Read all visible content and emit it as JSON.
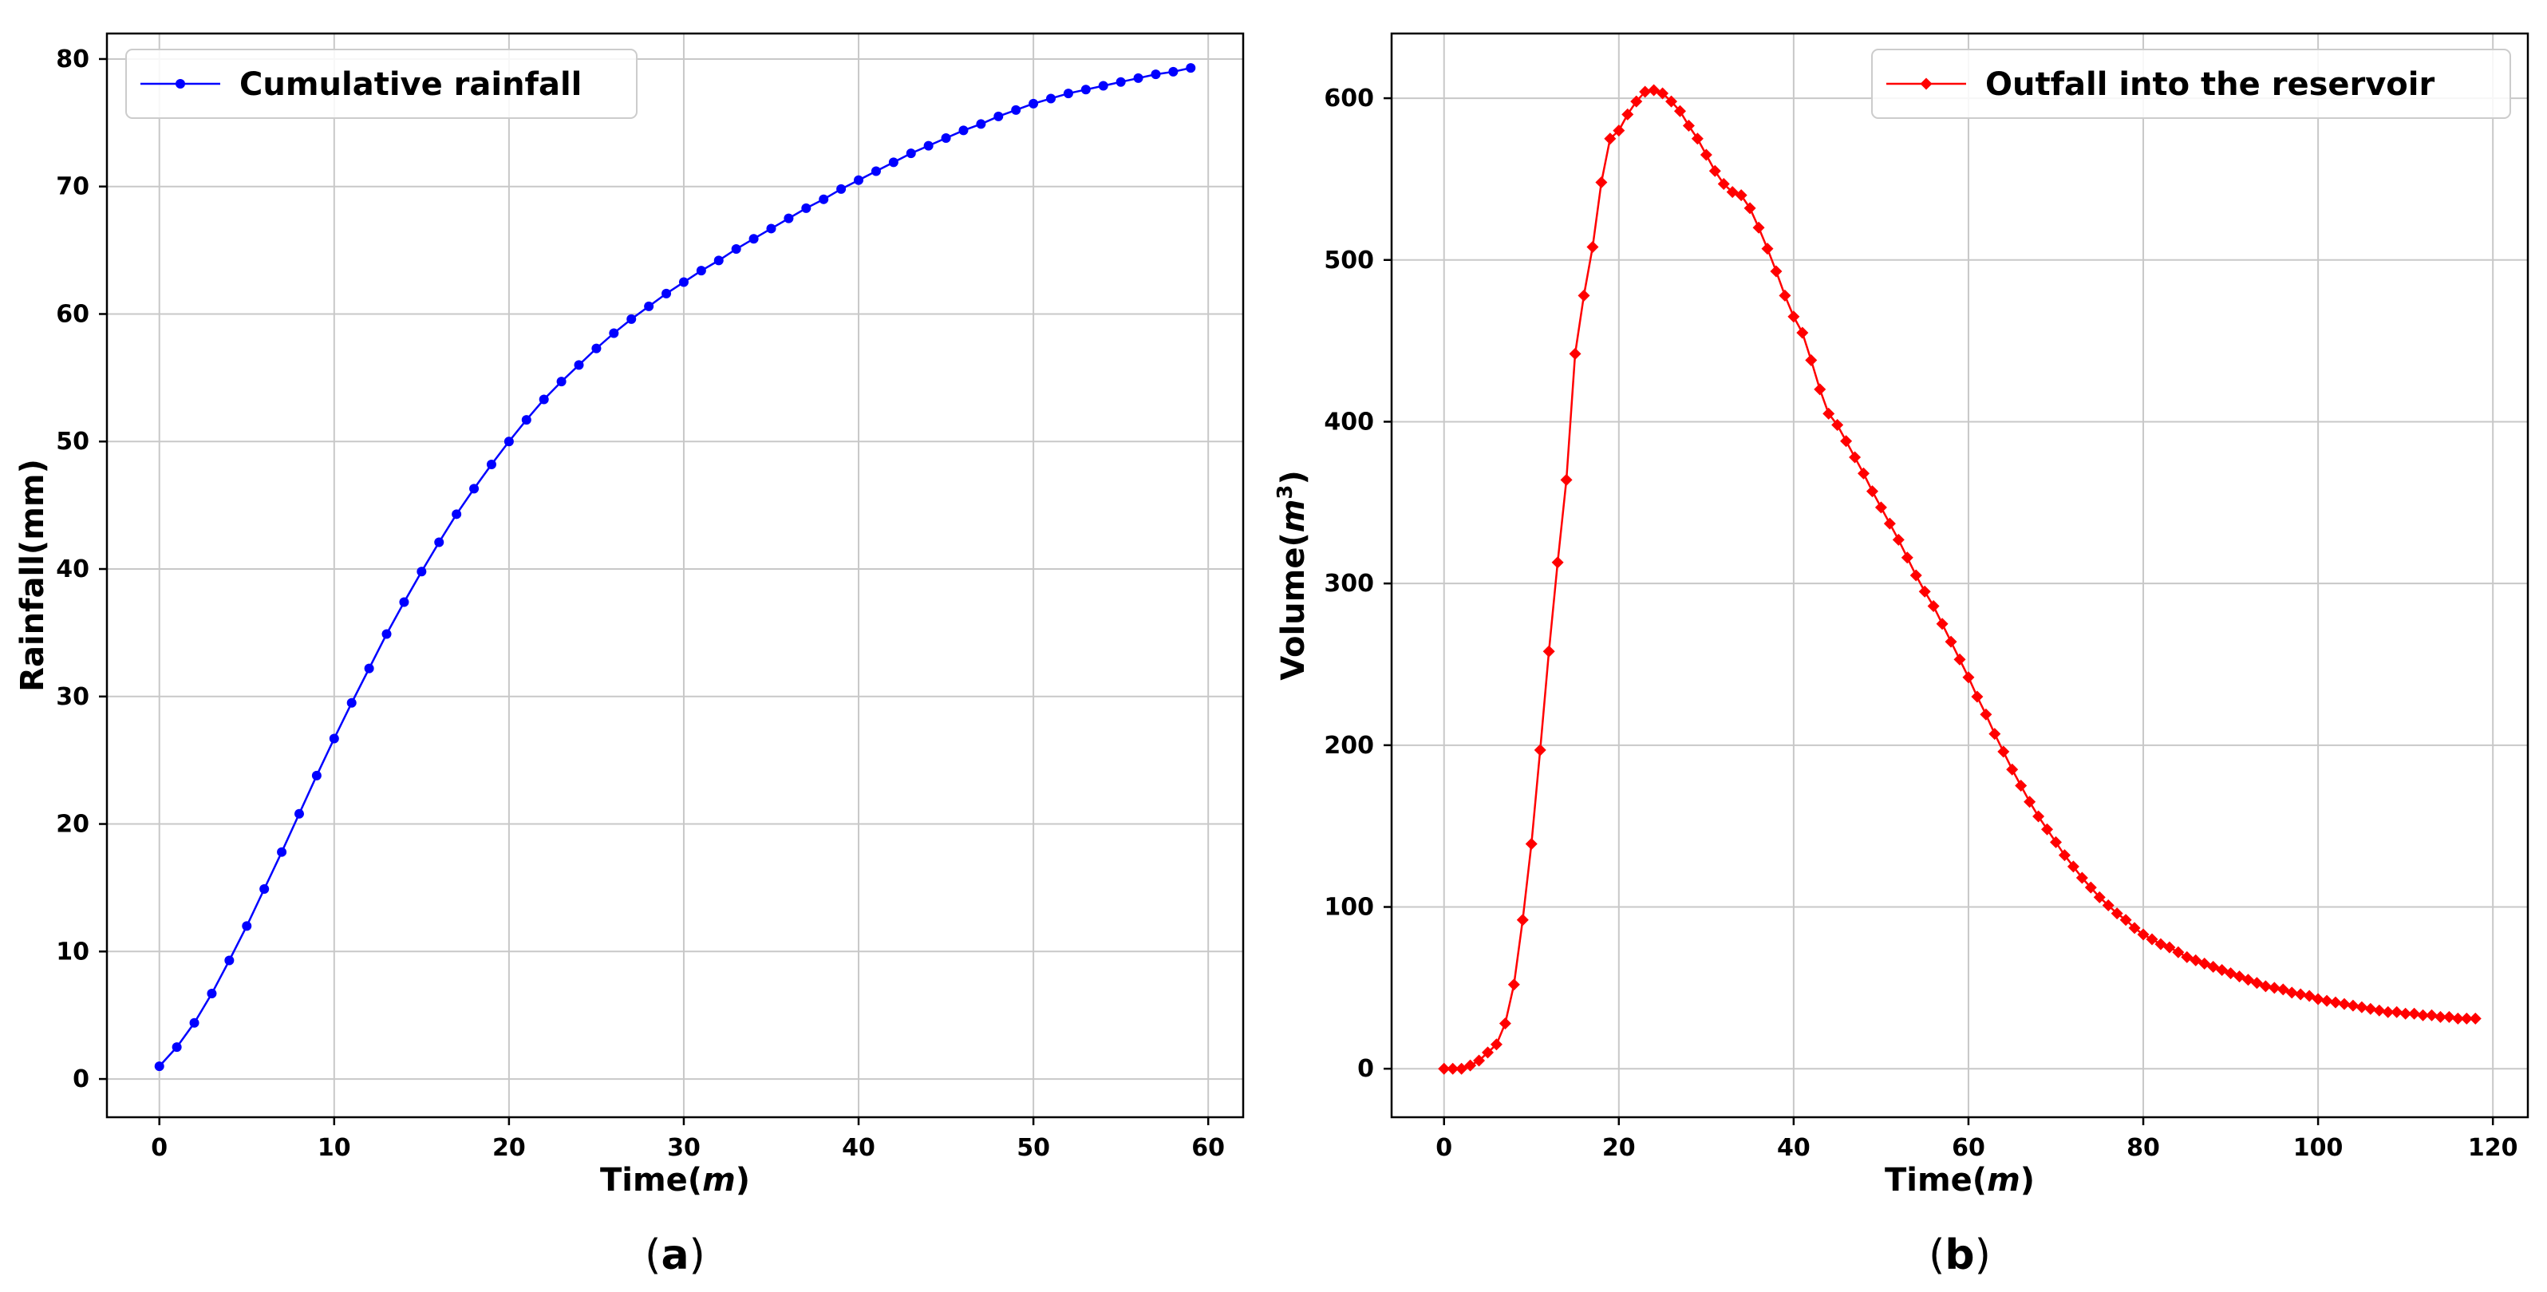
{
  "chart_data": [
    {
      "type": "line",
      "caption": "a",
      "xlabel": "Time(m)",
      "ylabel": "Rainfall(mm)",
      "xlim": [
        -3,
        62
      ],
      "ylim": [
        -3,
        82
      ],
      "xticks": [
        0,
        10,
        20,
        30,
        40,
        50,
        60
      ],
      "yticks": [
        0,
        10,
        20,
        30,
        40,
        50,
        60,
        70,
        80
      ],
      "grid": true,
      "legend_position": "top-left",
      "colors": {
        "series": "#0000ff"
      },
      "series": [
        {
          "name": "Cumulative rainfall",
          "marker": "circle",
          "x": [
            0,
            1,
            2,
            3,
            4,
            5,
            6,
            7,
            8,
            9,
            10,
            11,
            12,
            13,
            14,
            15,
            16,
            17,
            18,
            19,
            20,
            21,
            22,
            23,
            24,
            25,
            26,
            27,
            28,
            29,
            30,
            31,
            32,
            33,
            34,
            35,
            36,
            37,
            38,
            39,
            40,
            41,
            42,
            43,
            44,
            45,
            46,
            47,
            48,
            49,
            50,
            51,
            52,
            53,
            54,
            55,
            56,
            57,
            58,
            59
          ],
          "y": [
            1.0,
            2.5,
            4.4,
            6.7,
            9.3,
            12.0,
            14.9,
            17.8,
            20.8,
            23.8,
            26.7,
            29.5,
            32.2,
            34.9,
            37.4,
            39.8,
            42.1,
            44.3,
            46.3,
            48.2,
            50.0,
            51.7,
            53.3,
            54.7,
            56.0,
            57.3,
            58.5,
            59.6,
            60.6,
            61.6,
            62.5,
            63.4,
            64.2,
            65.1,
            65.9,
            66.7,
            67.5,
            68.3,
            69.0,
            69.8,
            70.5,
            71.2,
            71.9,
            72.6,
            73.2,
            73.8,
            74.4,
            74.9,
            75.5,
            76.0,
            76.5,
            76.9,
            77.3,
            77.6,
            77.9,
            78.2,
            78.5,
            78.8,
            79.0,
            79.3
          ]
        }
      ]
    },
    {
      "type": "line",
      "caption": "b",
      "xlabel": "Time(m)",
      "ylabel": "Volume(m3)",
      "xlim": [
        -6,
        124
      ],
      "ylim": [
        -30,
        640
      ],
      "xticks": [
        0,
        20,
        40,
        60,
        80,
        100,
        120
      ],
      "yticks": [
        0,
        100,
        200,
        300,
        400,
        500,
        600
      ],
      "grid": true,
      "legend_position": "top-right",
      "colors": {
        "series": "#ff0000"
      },
      "series": [
        {
          "name": "Outfall into the reservoir",
          "marker": "diamond",
          "x": [
            0,
            1,
            2,
            3,
            4,
            5,
            6,
            7,
            8,
            9,
            10,
            11,
            12,
            13,
            14,
            15,
            16,
            17,
            18,
            19,
            20,
            21,
            22,
            23,
            24,
            25,
            26,
            27,
            28,
            29,
            30,
            31,
            32,
            33,
            34,
            35,
            36,
            37,
            38,
            39,
            40,
            41,
            42,
            43,
            44,
            45,
            46,
            47,
            48,
            49,
            50,
            51,
            52,
            53,
            54,
            55,
            56,
            57,
            58,
            59,
            60,
            61,
            62,
            63,
            64,
            65,
            66,
            67,
            68,
            69,
            70,
            71,
            72,
            73,
            74,
            75,
            76,
            77,
            78,
            79,
            80,
            81,
            82,
            83,
            84,
            85,
            86,
            87,
            88,
            89,
            90,
            91,
            92,
            93,
            94,
            95,
            96,
            97,
            98,
            99,
            100,
            101,
            102,
            103,
            104,
            105,
            106,
            107,
            108,
            109,
            110,
            111,
            112,
            113,
            114,
            115,
            116,
            117,
            118
          ],
          "y": [
            0,
            0,
            0,
            2,
            5,
            10,
            15,
            28,
            52,
            92,
            139,
            197,
            258,
            313,
            364,
            442,
            478,
            508,
            548,
            575,
            580,
            590,
            598,
            604,
            605,
            603,
            598,
            592,
            583,
            575,
            565,
            555,
            547,
            542,
            540,
            532,
            520,
            507,
            493,
            478,
            465,
            455,
            438,
            420,
            405,
            398,
            388,
            378,
            368,
            357,
            347,
            337,
            327,
            316,
            305,
            295,
            286,
            275,
            264,
            253,
            242,
            230,
            219,
            207,
            196,
            185,
            175,
            165,
            156,
            148,
            140,
            132,
            125,
            118,
            112,
            106,
            101,
            96,
            92,
            87,
            83,
            80,
            77,
            75,
            72,
            69,
            67,
            65,
            63,
            61,
            59,
            57,
            55,
            53,
            51,
            50,
            49,
            47,
            46,
            45,
            43,
            42,
            41,
            40,
            39,
            38,
            37,
            36,
            35,
            35,
            34,
            34,
            33,
            33,
            32,
            32,
            31,
            31,
            31
          ],
          "draw_count": 119
        }
      ]
    }
  ]
}
